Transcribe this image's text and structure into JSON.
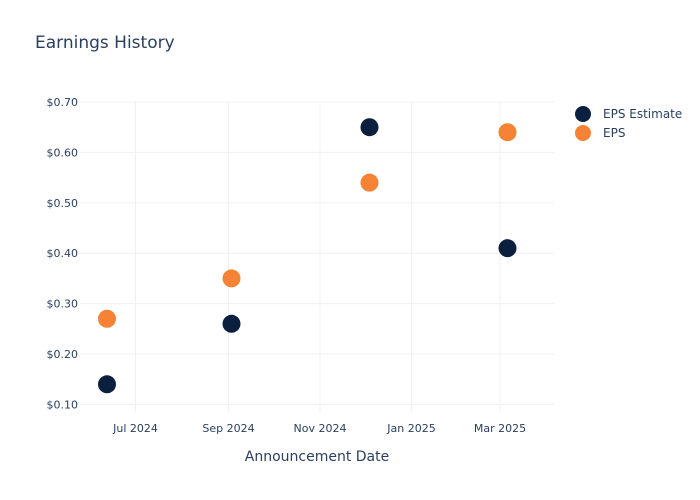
{
  "chart_data": {
    "type": "scatter",
    "title": "Earnings History",
    "xlabel": "Announcement Date",
    "ylabel": "",
    "x_tick_labels": [
      {
        "date": "2024-07-01",
        "label": "Jul 2024"
      },
      {
        "date": "2024-09-01",
        "label": "Sep 2024"
      },
      {
        "date": "2024-11-01",
        "label": "Nov 2024"
      },
      {
        "date": "2025-01-01",
        "label": "Jan 2025"
      },
      {
        "date": "2025-03-01",
        "label": "Mar 2025"
      }
    ],
    "y_ticks": [
      0.1,
      0.2,
      0.3,
      0.4,
      0.5,
      0.6,
      0.7
    ],
    "y_tick_labels": [
      "$0.10",
      "$0.20",
      "$0.30",
      "$0.40",
      "$0.50",
      "$0.60",
      "$0.70"
    ],
    "xlim": [
      "2024-05-25",
      "2025-04-06"
    ],
    "ylim": [
      0.085,
      0.7
    ],
    "grid": true,
    "legend_position": "top-right",
    "series": [
      {
        "name": "EPS Estimate",
        "color": "#0b1f3f",
        "points": [
          {
            "x": "2024-06-12",
            "y": 0.14
          },
          {
            "x": "2024-09-03",
            "y": 0.26
          },
          {
            "x": "2024-12-04",
            "y": 0.65
          },
          {
            "x": "2025-03-06",
            "y": 0.41
          }
        ]
      },
      {
        "name": "EPS",
        "color": "#f58235",
        "points": [
          {
            "x": "2024-06-12",
            "y": 0.27
          },
          {
            "x": "2024-09-03",
            "y": 0.35
          },
          {
            "x": "2024-12-04",
            "y": 0.54
          },
          {
            "x": "2025-03-06",
            "y": 0.64
          }
        ]
      }
    ]
  },
  "colors": {
    "text": "#2a3f5f",
    "grid": "#eef0f4"
  }
}
